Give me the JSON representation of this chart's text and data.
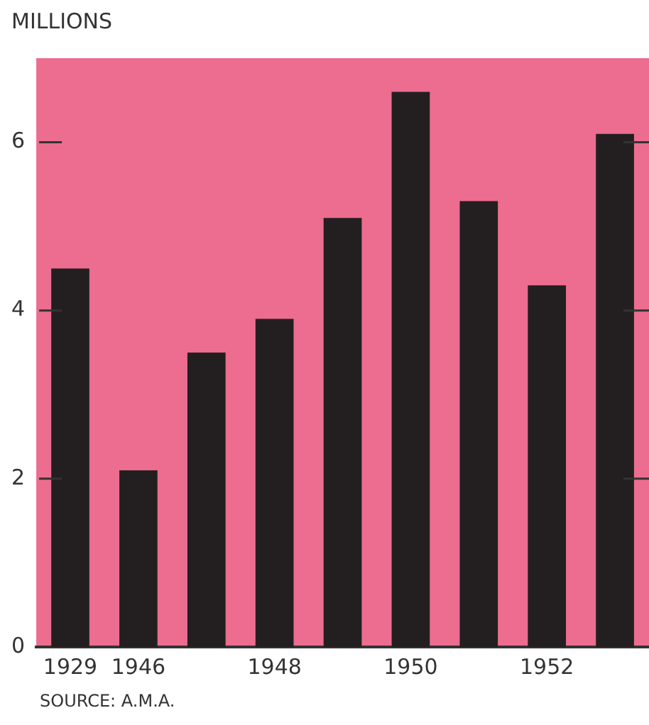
{
  "chart_data": {
    "type": "bar",
    "ylabel": "MILLIONS",
    "categories": [
      "1929",
      "1946",
      null,
      "1948",
      null,
      "1950",
      null,
      "1952",
      null
    ],
    "values": [
      4.5,
      2.1,
      3.5,
      3.9,
      5.1,
      6.6,
      5.3,
      4.3,
      6.1
    ],
    "color": "#231f20",
    "ylim": [
      0,
      7
    ],
    "yticks": [
      0,
      2,
      4,
      6
    ],
    "grid": false,
    "annotations": [
      "SOURCE: A.M.A."
    ]
  }
}
